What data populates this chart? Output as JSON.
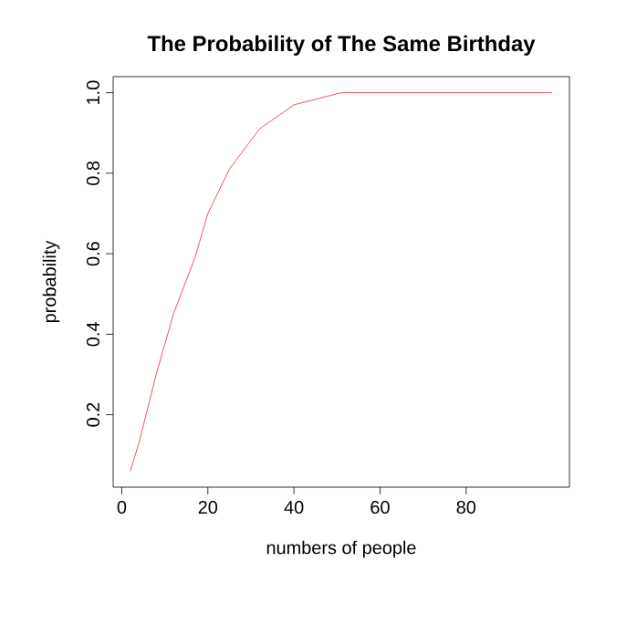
{
  "chart_data": {
    "type": "line",
    "title": "The Probability of The Same Birthday",
    "xlabel": "numbers of people",
    "ylabel": "probability",
    "x": [
      2,
      4,
      8,
      12,
      17,
      20,
      25,
      32,
      40,
      51,
      60,
      80,
      100
    ],
    "series": [
      {
        "color": "#e0303a",
        "values": [
          0.06,
          0.13,
          0.3,
          0.45,
          0.59,
          0.7,
          0.81,
          0.91,
          0.97,
          1.0,
          1.0,
          1.0,
          1.0
        ]
      }
    ],
    "xlim": [
      -2,
      104
    ],
    "ylim": [
      0.02,
      1.04
    ],
    "xticks": [
      0,
      20,
      40,
      60,
      80
    ],
    "yticks": [
      0.2,
      0.4,
      0.6,
      0.8,
      {
        "value": 1,
        "label": "1.0"
      }
    ],
    "grid": false,
    "marker": "none",
    "line_style": "solid"
  }
}
